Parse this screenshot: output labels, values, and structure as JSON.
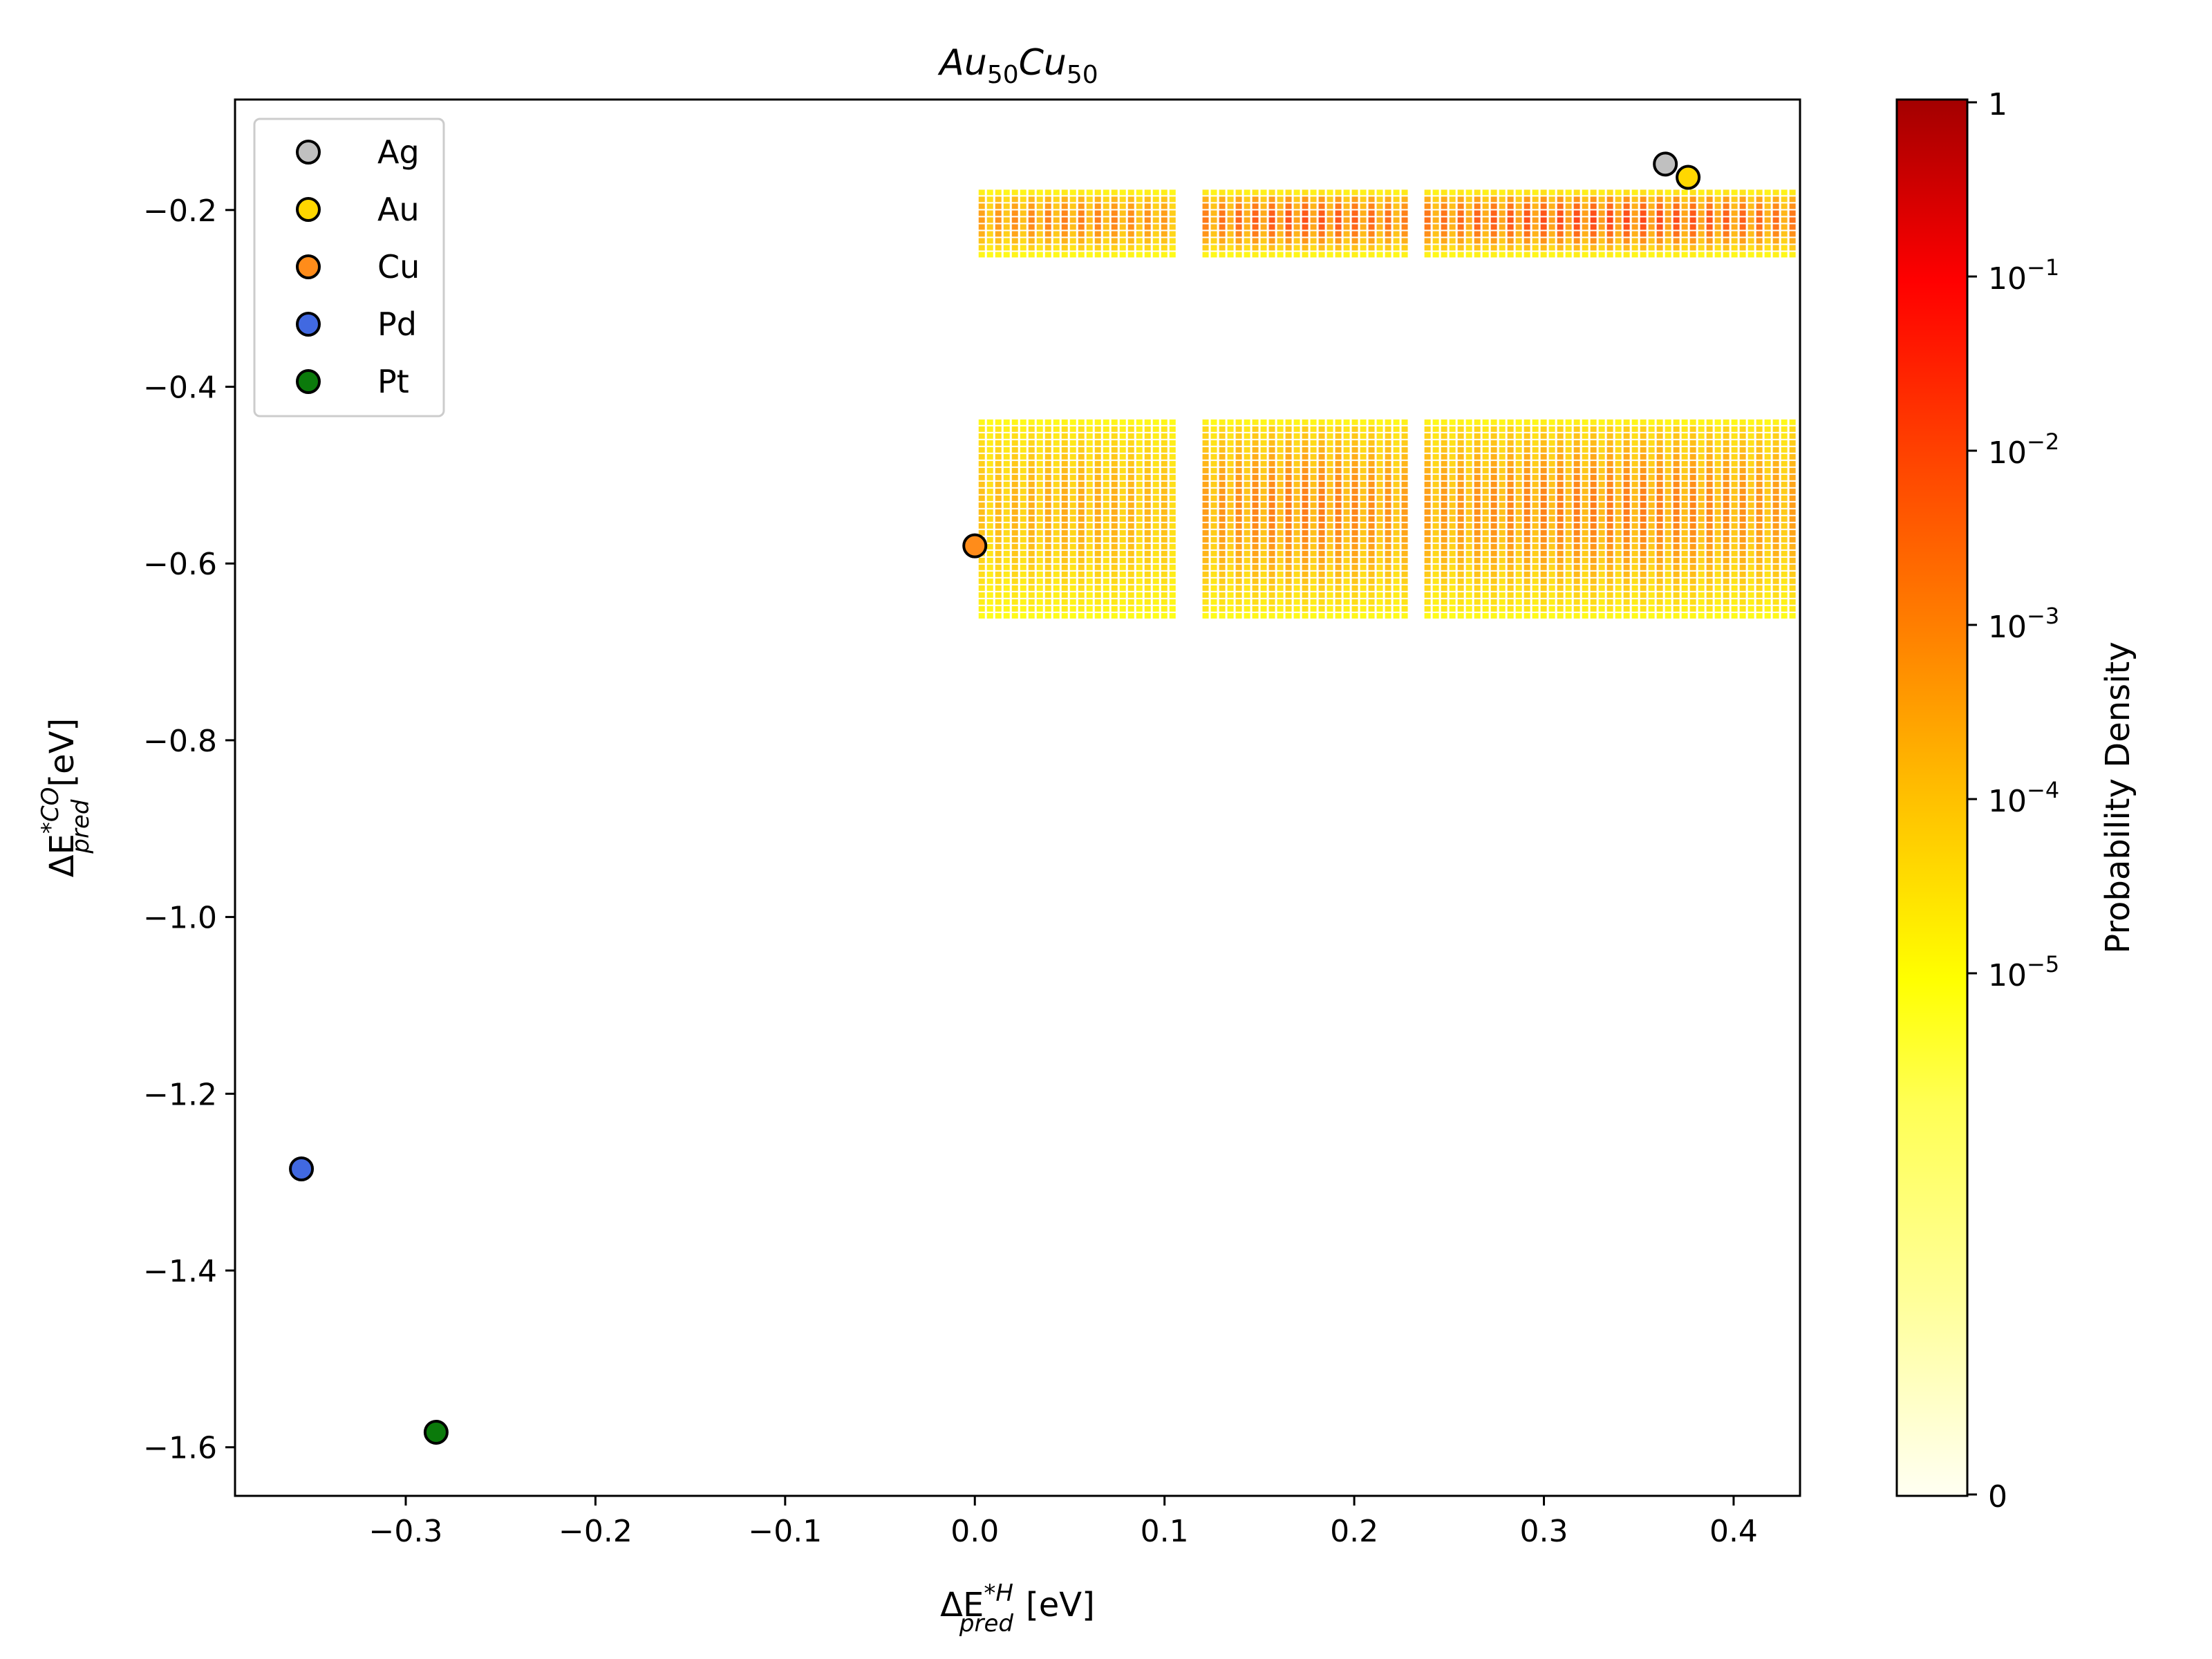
{
  "chart_data": {
    "type": "scatter",
    "title": {
      "main": "Au",
      "sub1": "50",
      "mid": "Cu",
      "sub2": "50"
    },
    "xlabel": {
      "prefix": "ΔE",
      "sup": "*H",
      "sub": "pred",
      "unit": "[eV]"
    },
    "ylabel": {
      "prefix": "ΔE",
      "sup": "*CO",
      "sub": "pred",
      "unit": "[eV]"
    },
    "xlim": [
      -0.39,
      0.435
    ],
    "ylim": [
      -1.655,
      -0.075
    ],
    "x_ticks": [
      -0.3,
      -0.2,
      -0.1,
      0.0,
      0.1,
      0.2,
      0.3,
      0.4
    ],
    "x_tick_labels": [
      "−0.3",
      "−0.2",
      "−0.1",
      "0.0",
      "0.1",
      "0.2",
      "0.3",
      "0.4"
    ],
    "y_ticks": [
      -0.2,
      -0.4,
      -0.6,
      -0.8,
      -1.0,
      -1.2,
      -1.4,
      -1.6
    ],
    "y_tick_labels": [
      "−0.2",
      "−0.4",
      "−0.6",
      "−0.8",
      "−1.0",
      "−1.2",
      "−1.4",
      "−1.6"
    ],
    "grid": false,
    "legend_position": "upper-left",
    "series": [
      {
        "name": "Ag",
        "color": "#c0c0c0",
        "x": 0.364,
        "y": -0.148
      },
      {
        "name": "Au",
        "color": "#ffd700",
        "x": 0.376,
        "y": -0.163
      },
      {
        "name": "Cu",
        "color": "#ff8c1a",
        "x": 0.0,
        "y": -0.58
      },
      {
        "name": "Pd",
        "color": "#4169e1",
        "x": -0.355,
        "y": -1.285
      },
      {
        "name": "Pt",
        "color": "#0b7a0b",
        "x": -0.284,
        "y": -1.583
      }
    ],
    "density_regions": [
      {
        "x": [
          0.002,
          0.108
        ],
        "y": [
          -0.258,
          -0.177
        ],
        "peak": 0.6
      },
      {
        "x": [
          0.12,
          0.23
        ],
        "y": [
          -0.258,
          -0.177
        ],
        "peak": 0.8
      },
      {
        "x": [
          0.237,
          0.435
        ],
        "y": [
          -0.258,
          -0.177
        ],
        "peak": 0.85
      },
      {
        "x": [
          0.002,
          0.108
        ],
        "y": [
          -0.665,
          -0.437
        ],
        "peak": 0.4
      },
      {
        "x": [
          0.12,
          0.23
        ],
        "y": [
          -0.665,
          -0.437
        ],
        "peak": 0.6
      },
      {
        "x": [
          0.237,
          0.435
        ],
        "y": [
          -0.665,
          -0.437
        ],
        "peak": 0.6
      }
    ],
    "colorbar": {
      "label": "Probability Density",
      "scale": "symlog",
      "tick_labels": [
        {
          "base": "1",
          "exp": ""
        },
        {
          "base": "10",
          "exp": "−1"
        },
        {
          "base": "10",
          "exp": "−2"
        },
        {
          "base": "10",
          "exp": "−3"
        },
        {
          "base": "10",
          "exp": "−4"
        },
        {
          "base": "10",
          "exp": "−5"
        },
        {
          "base": "0",
          "exp": ""
        }
      ],
      "colors": [
        "#fffff2",
        "#ffff80",
        "#ffff00",
        "#ffc000",
        "#ff8000",
        "#ff4000",
        "#ff0000",
        "#a30000"
      ]
    }
  }
}
